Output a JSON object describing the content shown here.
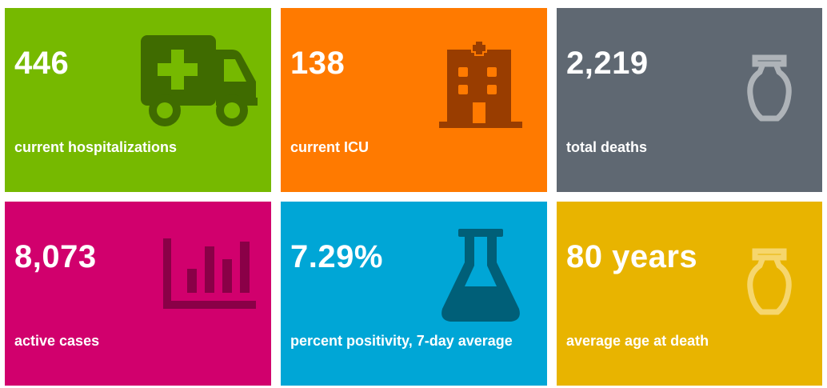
{
  "tiles": [
    {
      "value": "446",
      "label": "current hospitalizations",
      "color": "#76b900",
      "icon": "ambulance-icon"
    },
    {
      "value": "138",
      "label": "current ICU",
      "color": "#ff7a00",
      "icon": "hospital-icon"
    },
    {
      "value": "2,219",
      "label": "total deaths",
      "color": "#5f6872",
      "icon": "urn-icon"
    },
    {
      "value": "8,073",
      "label": "active cases",
      "color": "#d1006d",
      "icon": "bar-chart-icon"
    },
    {
      "value": "7.29%",
      "label": "percent positivity, 7-day average",
      "color": "#00a6d6",
      "icon": "flask-icon"
    },
    {
      "value": "80 years",
      "label": "average age at death",
      "color": "#e8b400",
      "icon": "urn-icon"
    }
  ]
}
